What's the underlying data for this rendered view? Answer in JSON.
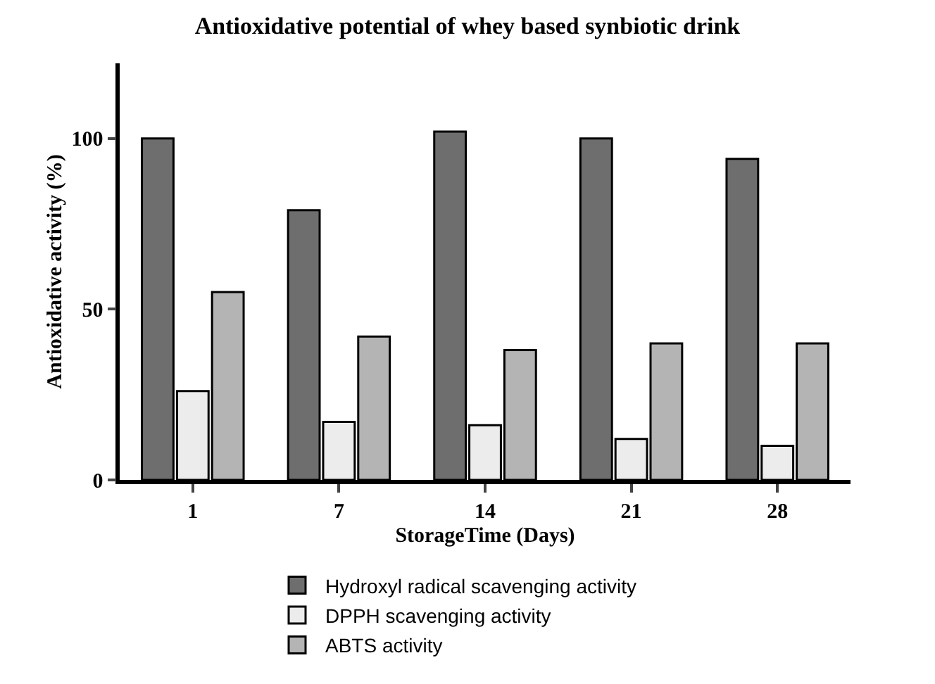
{
  "chart_data": {
    "type": "bar",
    "title": "Antioxidative potential of whey based synbiotic drink",
    "xlabel": "StorageTime (Days)",
    "ylabel": "Antioxidative activity (%)",
    "categories": [
      "1",
      "7",
      "14",
      "21",
      "28"
    ],
    "series": [
      {
        "name": "Hydroxyl radical scavenging activity",
        "color": "#6e6e6e",
        "values": [
          100,
          79,
          102,
          100,
          94
        ]
      },
      {
        "name": "DPPH scavenging activity",
        "color": "#ececec",
        "values": [
          26,
          17,
          16,
          12,
          10
        ]
      },
      {
        "name": "ABTS activity",
        "color": "#b4b4b4",
        "values": [
          55,
          42,
          38,
          40,
          40
        ]
      }
    ],
    "ylim": [
      0,
      122
    ],
    "yticks": [
      0,
      50,
      100
    ],
    "grid": false,
    "legend": "bottom"
  }
}
